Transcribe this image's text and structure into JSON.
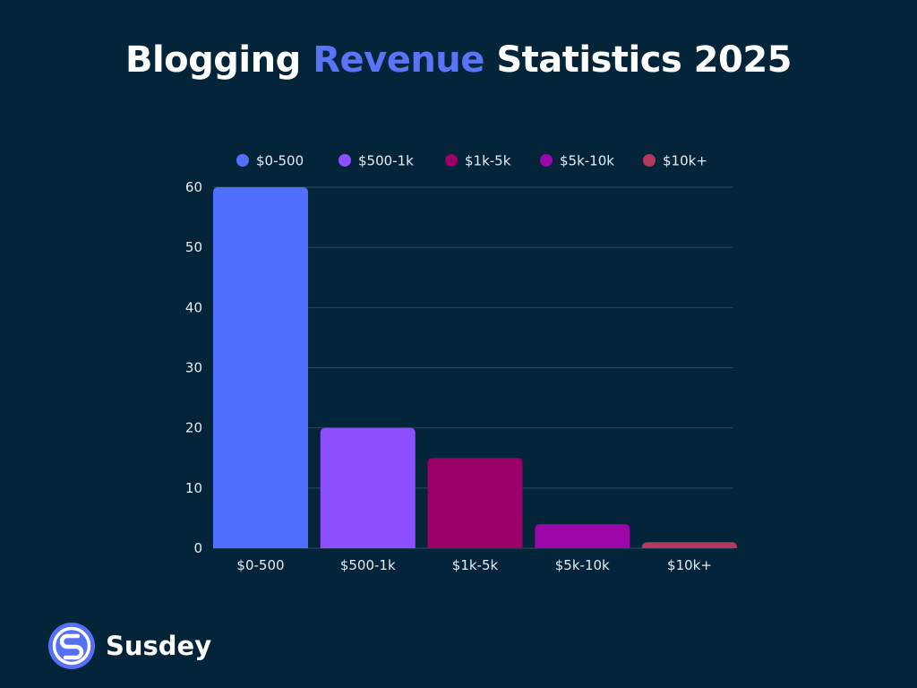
{
  "title": {
    "part1": "Blogging ",
    "highlight": "Revenue",
    "part2": " Statistics 2025",
    "highlight_color": "#5b74f5"
  },
  "brand": {
    "name": "Susdey",
    "logo_icon": "susdey-logo-icon",
    "logo_color": "#5470f4"
  },
  "chart_data": {
    "type": "bar",
    "categories": [
      "$0-500",
      "$500-1k",
      "$1k-5k",
      "$5k-10k",
      "$10k+"
    ],
    "values": [
      60,
      20,
      15,
      4,
      1
    ],
    "colors": [
      "#5270fe",
      "#8c4ffe",
      "#9a0068",
      "#9c07a8",
      "#b4395e"
    ],
    "yticks": [
      0,
      10,
      20,
      30,
      40,
      50,
      60
    ],
    "ylim": [
      0,
      60
    ],
    "grid": true,
    "legend": [
      "$0-500",
      "$500-1k",
      "$1k-5k",
      "$5k-10k",
      "$10k+"
    ],
    "legend_placement": "top-center"
  }
}
